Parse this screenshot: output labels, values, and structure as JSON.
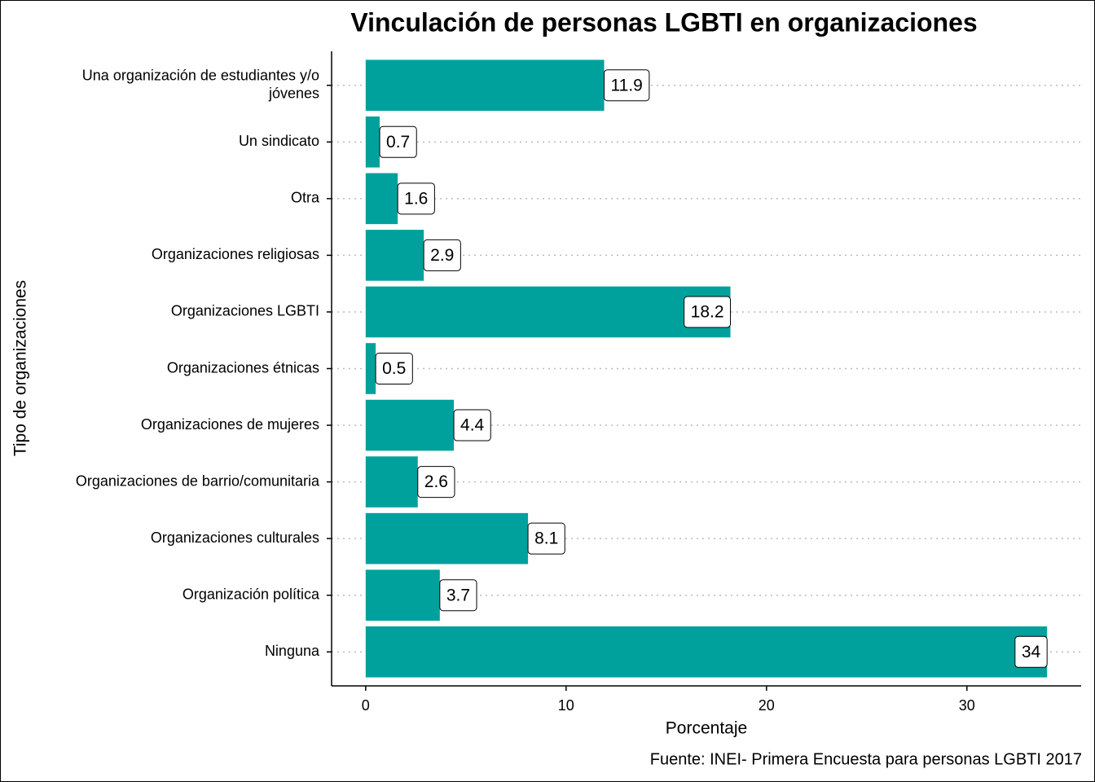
{
  "chart_data": {
    "type": "bar",
    "orientation": "horizontal",
    "title": "Vinculación de personas LGBTI en organizaciones",
    "x_label": "Porcentaje",
    "y_label": "Tipo de organizaciones",
    "caption": "Fuente: INEI- Primera Encuesta para personas LGBTI 2017",
    "categories": [
      "Una organización de estudiantes y/o\njóvenes",
      "Un sindicato",
      "Otra",
      "Organizaciones religiosas",
      "Organizaciones LGBTI",
      "Organizaciones étnicas",
      "Organizaciones de mujeres",
      "Organizaciones de barrio/comunitaria",
      "Organizaciones culturales",
      "Organización política",
      "Ninguna"
    ],
    "values": [
      11.9,
      0.7,
      1.6,
      2.9,
      18.2,
      0.5,
      4.4,
      2.6,
      8.1,
      3.7,
      34
    ],
    "color": "#00a19d",
    "xlim": [
      -1.7,
      35.7
    ],
    "xticks": [
      0,
      10,
      20,
      30
    ],
    "grid": true
  }
}
